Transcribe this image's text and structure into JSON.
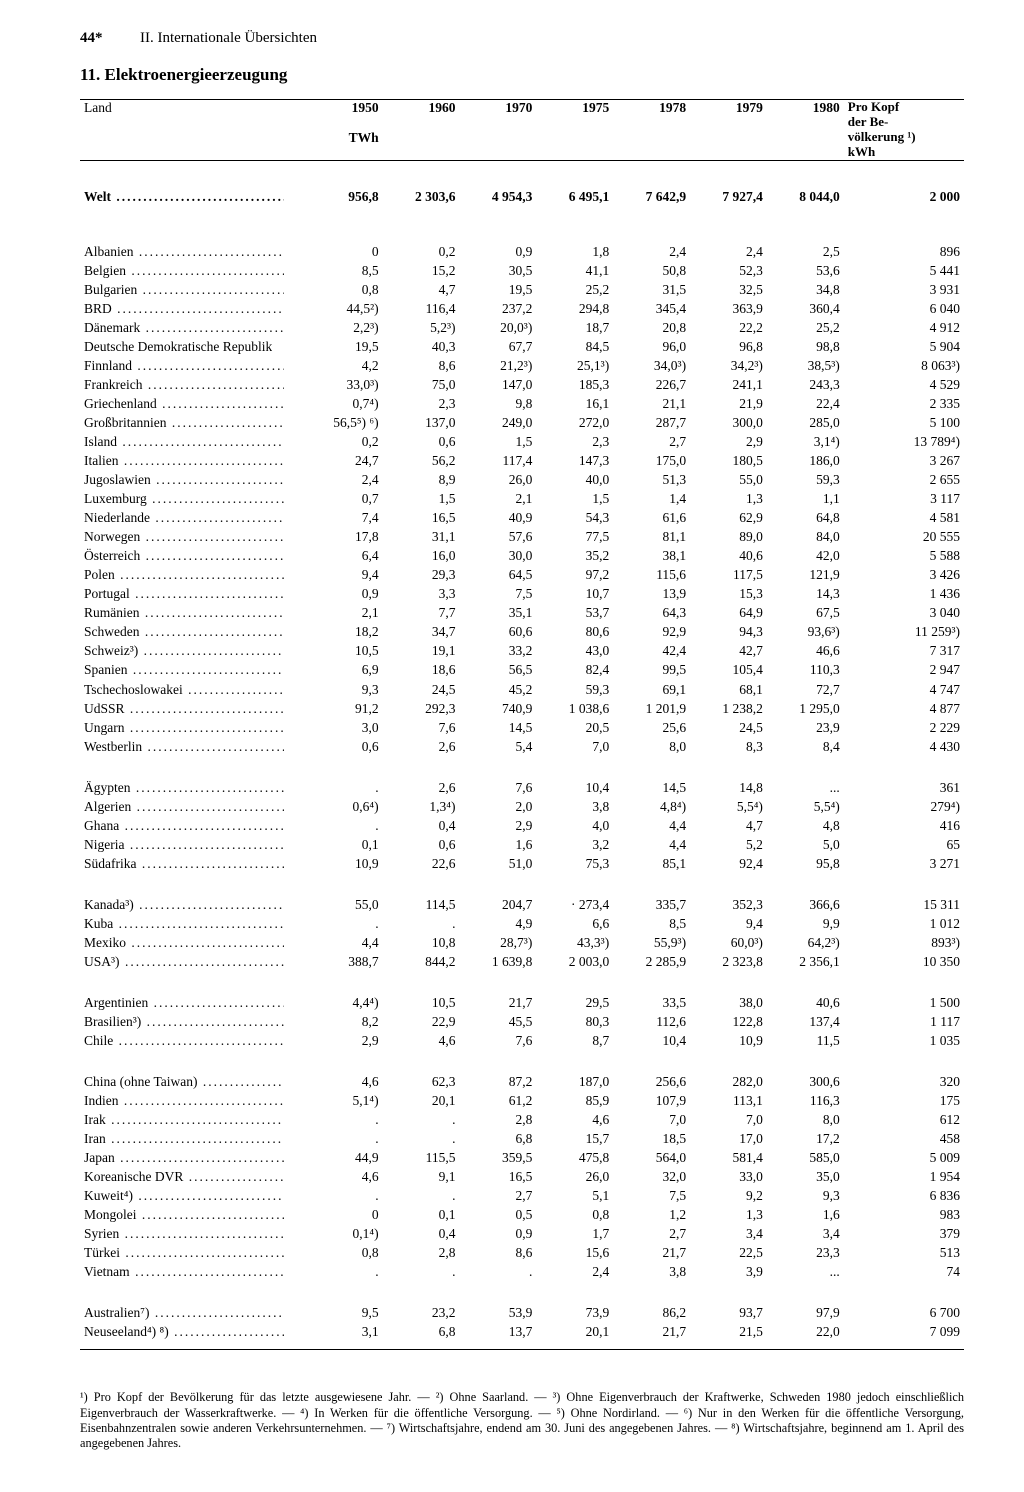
{
  "page_number": "44*",
  "running_head": "II. Internationale Übersichten",
  "section_title": "11. Elektroenergieerzeugung",
  "columns": {
    "country_label": "Land",
    "year_labels": [
      "1950",
      "1960",
      "1970",
      "1975",
      "1978",
      "1979",
      "1980"
    ],
    "unit": "TWh",
    "percapita_lines": [
      "Pro Kopf",
      "der Be-",
      "völkerung ¹)",
      "kWh"
    ]
  },
  "world_row": {
    "name": "Welt",
    "values": [
      "956,8",
      "2 303,6",
      "4 954,3",
      "6 495,1",
      "7 642,9",
      "7 927,4",
      "8 044,0",
      "2 000"
    ]
  },
  "groups": [
    [
      {
        "name": "Albanien",
        "v": [
          "0",
          "0,2",
          "0,9",
          "1,8",
          "2,4",
          "2,4",
          "2,5",
          "896"
        ]
      },
      {
        "name": "Belgien",
        "v": [
          "8,5",
          "15,2",
          "30,5",
          "41,1",
          "50,8",
          "52,3",
          "53,6",
          "5 441"
        ]
      },
      {
        "name": "Bulgarien",
        "v": [
          "0,8",
          "4,7",
          "19,5",
          "25,2",
          "31,5",
          "32,5",
          "34,8",
          "3 931"
        ]
      },
      {
        "name": "BRD",
        "v": [
          "44,5²)",
          "116,4",
          "237,2",
          "294,8",
          "345,4",
          "363,9",
          "360,4",
          "6 040"
        ]
      },
      {
        "name": "Dänemark",
        "v": [
          "2,2³)",
          "5,2³)",
          "20,0³)",
          "18,7",
          "20,8",
          "22,2",
          "25,2",
          "4 912"
        ]
      },
      {
        "name": "Deutsche Demokratische Republik",
        "v": [
          "19,5",
          "40,3",
          "67,7",
          "84,5",
          "96,0",
          "96,8",
          "98,8",
          "5 904"
        ]
      },
      {
        "name": "Finnland",
        "v": [
          "4,2",
          "8,6",
          "21,2³)",
          "25,1³)",
          "34,0³)",
          "34,2³)",
          "38,5³)",
          "8 063³)"
        ]
      },
      {
        "name": "Frankreich",
        "v": [
          "33,0³)",
          "75,0",
          "147,0",
          "185,3",
          "226,7",
          "241,1",
          "243,3",
          "4 529"
        ]
      },
      {
        "name": "Griechenland",
        "v": [
          "0,7⁴)",
          "2,3",
          "9,8",
          "16,1",
          "21,1",
          "21,9",
          "22,4",
          "2 335"
        ]
      },
      {
        "name": "Großbritannien",
        "v": [
          "56,5⁵) ⁶)",
          "137,0",
          "249,0",
          "272,0",
          "287,7",
          "300,0",
          "285,0",
          "5 100"
        ]
      },
      {
        "name": "Island",
        "v": [
          "0,2",
          "0,6",
          "1,5",
          "2,3",
          "2,7",
          "2,9",
          "3,1⁴)",
          "13 789⁴)"
        ]
      },
      {
        "name": "Italien",
        "v": [
          "24,7",
          "56,2",
          "117,4",
          "147,3",
          "175,0",
          "180,5",
          "186,0",
          "3 267"
        ]
      },
      {
        "name": "Jugoslawien",
        "v": [
          "2,4",
          "8,9",
          "26,0",
          "40,0",
          "51,3",
          "55,0",
          "59,3",
          "2 655"
        ]
      },
      {
        "name": "Luxemburg",
        "v": [
          "0,7",
          "1,5",
          "2,1",
          "1,5",
          "1,4",
          "1,3",
          "1,1",
          "3 117"
        ]
      },
      {
        "name": "Niederlande",
        "v": [
          "7,4",
          "16,5",
          "40,9",
          "54,3",
          "61,6",
          "62,9",
          "64,8",
          "4 581"
        ]
      },
      {
        "name": "Norwegen",
        "v": [
          "17,8",
          "31,1",
          "57,6",
          "77,5",
          "81,1",
          "89,0",
          "84,0",
          "20 555"
        ]
      },
      {
        "name": "Österreich",
        "v": [
          "6,4",
          "16,0",
          "30,0",
          "35,2",
          "38,1",
          "40,6",
          "42,0",
          "5 588"
        ]
      },
      {
        "name": "Polen",
        "v": [
          "9,4",
          "29,3",
          "64,5",
          "97,2",
          "115,6",
          "117,5",
          "121,9",
          "3 426"
        ]
      },
      {
        "name": "Portugal",
        "v": [
          "0,9",
          "3,3",
          "7,5",
          "10,7",
          "13,9",
          "15,3",
          "14,3",
          "1 436"
        ]
      },
      {
        "name": "Rumänien",
        "v": [
          "2,1",
          "7,7",
          "35,1",
          "53,7",
          "64,3",
          "64,9",
          "67,5",
          "3 040"
        ]
      },
      {
        "name": "Schweden",
        "v": [
          "18,2",
          "34,7",
          "60,6",
          "80,6",
          "92,9",
          "94,3",
          "93,6³)",
          "11 259³)"
        ]
      },
      {
        "name": "Schweiz³)",
        "v": [
          "10,5",
          "19,1",
          "33,2",
          "43,0",
          "42,4",
          "42,7",
          "46,6",
          "7 317"
        ]
      },
      {
        "name": "Spanien",
        "v": [
          "6,9",
          "18,6",
          "56,5",
          "82,4",
          "99,5",
          "105,4",
          "110,3",
          "2 947"
        ]
      },
      {
        "name": "Tschechoslowakei",
        "v": [
          "9,3",
          "24,5",
          "45,2",
          "59,3",
          "69,1",
          "68,1",
          "72,7",
          "4 747"
        ]
      },
      {
        "name": "UdSSR",
        "v": [
          "91,2",
          "292,3",
          "740,9",
          "1 038,6",
          "1 201,9",
          "1 238,2",
          "1 295,0",
          "4 877"
        ]
      },
      {
        "name": "Ungarn",
        "v": [
          "3,0",
          "7,6",
          "14,5",
          "20,5",
          "25,6",
          "24,5",
          "23,9",
          "2 229"
        ]
      },
      {
        "name": "Westberlin",
        "v": [
          "0,6",
          "2,6",
          "5,4",
          "7,0",
          "8,0",
          "8,3",
          "8,4",
          "4 430"
        ]
      }
    ],
    [
      {
        "name": "Ägypten",
        "v": [
          ".",
          "2,6",
          "7,6",
          "10,4",
          "14,5",
          "14,8",
          "...",
          "361"
        ]
      },
      {
        "name": "Algerien",
        "v": [
          "0,6⁴)",
          "1,3⁴)",
          "2,0",
          "3,8",
          "4,8⁴)",
          "5,5⁴)",
          "5,5⁴)",
          "279⁴)"
        ]
      },
      {
        "name": "Ghana",
        "v": [
          ".",
          "0,4",
          "2,9",
          "4,0",
          "4,4",
          "4,7",
          "4,8",
          "416"
        ]
      },
      {
        "name": "Nigeria",
        "v": [
          "0,1",
          "0,6",
          "1,6",
          "3,2",
          "4,4",
          "5,2",
          "5,0",
          "65"
        ]
      },
      {
        "name": "Südafrika",
        "v": [
          "10,9",
          "22,6",
          "51,0",
          "75,3",
          "85,1",
          "92,4",
          "95,8",
          "3 271"
        ]
      }
    ],
    [
      {
        "name": "Kanada³)",
        "v": [
          "55,0",
          "114,5",
          "204,7",
          "· 273,4",
          "335,7",
          "352,3",
          "366,6",
          "15 311"
        ]
      },
      {
        "name": "Kuba",
        "v": [
          ".",
          ".",
          "4,9",
          "6,6",
          "8,5",
          "9,4",
          "9,9",
          "1 012"
        ]
      },
      {
        "name": "Mexiko",
        "v": [
          "4,4",
          "10,8",
          "28,7³)",
          "43,3³)",
          "55,9³)",
          "60,0³)",
          "64,2³)",
          "893³)"
        ]
      },
      {
        "name": "USA³)",
        "v": [
          "388,7",
          "844,2",
          "1 639,8",
          "2 003,0",
          "2 285,9",
          "2 323,8",
          "2 356,1",
          "10 350"
        ]
      }
    ],
    [
      {
        "name": "Argentinien",
        "v": [
          "4,4⁴)",
          "10,5",
          "21,7",
          "29,5",
          "33,5",
          "38,0",
          "40,6",
          "1 500"
        ]
      },
      {
        "name": "Brasilien³)",
        "v": [
          "8,2",
          "22,9",
          "45,5",
          "80,3",
          "112,6",
          "122,8",
          "137,4",
          "1 117"
        ]
      },
      {
        "name": "Chile",
        "v": [
          "2,9",
          "4,6",
          "7,6",
          "8,7",
          "10,4",
          "10,9",
          "11,5",
          "1 035"
        ]
      }
    ],
    [
      {
        "name": "China (ohne Taiwan)",
        "v": [
          "4,6",
          "62,3",
          "87,2",
          "187,0",
          "256,6",
          "282,0",
          "300,6",
          "320"
        ]
      },
      {
        "name": "Indien",
        "v": [
          "5,1⁴)",
          "20,1",
          "61,2",
          "85,9",
          "107,9",
          "113,1",
          "116,3",
          "175"
        ]
      },
      {
        "name": "Irak",
        "v": [
          ".",
          ".",
          "2,8",
          "4,6",
          "7,0",
          "7,0",
          "8,0",
          "612"
        ]
      },
      {
        "name": "Iran",
        "v": [
          ".",
          ".",
          "6,8",
          "15,7",
          "18,5",
          "17,0",
          "17,2",
          "458"
        ]
      },
      {
        "name": "Japan",
        "v": [
          "44,9",
          "115,5",
          "359,5",
          "475,8",
          "564,0",
          "581,4",
          "585,0",
          "5 009"
        ]
      },
      {
        "name": "Koreanische DVR",
        "v": [
          "4,6",
          "9,1",
          "16,5",
          "26,0",
          "32,0",
          "33,0",
          "35,0",
          "1 954"
        ]
      },
      {
        "name": "Kuweit⁴)",
        "v": [
          ".",
          ".",
          "2,7",
          "5,1",
          "7,5",
          "9,2",
          "9,3",
          "6 836"
        ]
      },
      {
        "name": "Mongolei",
        "v": [
          "0",
          "0,1",
          "0,5",
          "0,8",
          "1,2",
          "1,3",
          "1,6",
          "983"
        ]
      },
      {
        "name": "Syrien",
        "v": [
          "0,1⁴)",
          "0,4",
          "0,9",
          "1,7",
          "2,7",
          "3,4",
          "3,4",
          "379"
        ]
      },
      {
        "name": "Türkei",
        "v": [
          "0,8",
          "2,8",
          "8,6",
          "15,6",
          "21,7",
          "22,5",
          "23,3",
          "513"
        ]
      },
      {
        "name": "Vietnam",
        "v": [
          ".",
          ".",
          ".",
          "2,4",
          "3,8",
          "3,9",
          "...",
          "74"
        ]
      }
    ],
    [
      {
        "name": "Australien⁷)",
        "v": [
          "9,5",
          "23,2",
          "53,9",
          "73,9",
          "86,2",
          "93,7",
          "97,9",
          "6 700"
        ]
      },
      {
        "name": "Neuseeland⁴) ⁸)",
        "v": [
          "3,1",
          "6,8",
          "13,7",
          "20,1",
          "21,7",
          "21,5",
          "22,0",
          "7 099"
        ]
      }
    ]
  ],
  "footnotes": "¹) Pro Kopf der Bevölkerung für das letzte ausgewiesene Jahr. — ²) Ohne Saarland. — ³) Ohne Eigenverbrauch der Kraftwerke, Schweden 1980 jedoch einschließlich Eigenverbrauch der Wasserkraftwerke. — ⁴) In Werken für die öffentliche Versorgung. — ⁵) Ohne Nordirland. — ⁶) Nur in den Werken für die öffentliche Versorgung, Eisenbahnzentralen sowie anderen Verkehrsunternehmen. — ⁷) Wirtschaftsjahre, endend am 30. Juni des angegebenen Jahres. — ⁸) Wirtschaftsjahre, beginnend am 1. April des angegebenen Jahres."
}
